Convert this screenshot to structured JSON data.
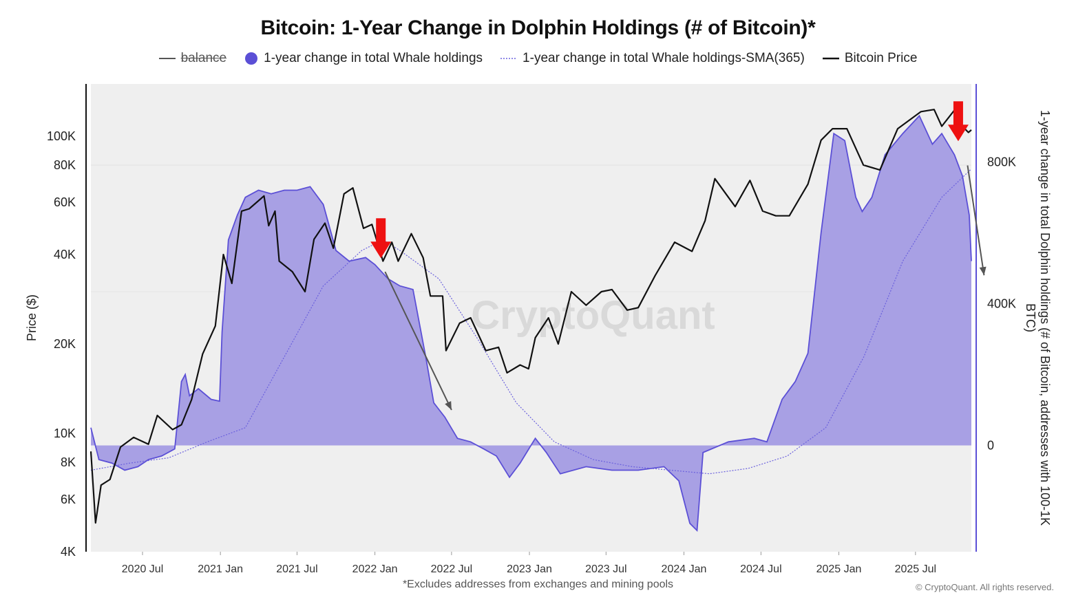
{
  "title": "Bitcoin: 1-Year Change in Dolphin Holdings (# of Bitcoin)*",
  "legend": {
    "balance": "balance",
    "whale_change": "1-year change in total Whale holdings",
    "whale_sma": "1-year change in total Whale holdings-SMA(365)",
    "btc_price": "Bitcoin Price"
  },
  "colors": {
    "area_fill": "#a39be3",
    "area_line": "#5b4fd6",
    "sma_line": "#6a60dd",
    "price_line": "#111111",
    "plot_bg": "#efefef",
    "arrow_red": "#ee1111",
    "arrow_gray": "#555555"
  },
  "watermark": "CryptoQuant",
  "footnote": "*Excludes addresses from exchanges and mining pools",
  "credit": "© CryptoQuant. All rights reserved.",
  "chart_data": {
    "type": "line",
    "x_tick_labels": [
      "2020 Jul",
      "2021 Jan",
      "2021 Jul",
      "2022 Jan",
      "2022 Jul",
      "2023 Jan",
      "2023 Jul",
      "2024 Jan",
      "2024 Jul",
      "2025 Jan",
      "2025 Jul"
    ],
    "left_axis": {
      "label": "Price ($)",
      "scale": "log",
      "range": [
        4000,
        150000
      ],
      "tick_labels": [
        "4K",
        "6K",
        "8K",
        "10K",
        "20K",
        "40K",
        "60K",
        "80K",
        "100K"
      ]
    },
    "right_axis": {
      "label": "1-year change in total Dolphin holdings (# of Bitcoin, addresses with 100-1K BTC)",
      "range": [
        -300000,
        1020000
      ],
      "tick_labels": [
        "0",
        "400K",
        "800K"
      ]
    },
    "x_range": [
      "2020-03-01",
      "2025-11-10"
    ],
    "series": [
      {
        "name": "Bitcoin Price",
        "axis": "left",
        "points": [
          [
            "2020-03-01",
            8700
          ],
          [
            "2020-03-12",
            5000
          ],
          [
            "2020-03-25",
            6700
          ],
          [
            "2020-04-15",
            7000
          ],
          [
            "2020-05-10",
            9000
          ],
          [
            "2020-06-10",
            9700
          ],
          [
            "2020-07-15",
            9200
          ],
          [
            "2020-08-05",
            11500
          ],
          [
            "2020-09-10",
            10300
          ],
          [
            "2020-10-01",
            10700
          ],
          [
            "2020-10-25",
            13000
          ],
          [
            "2020-11-20",
            18500
          ],
          [
            "2020-12-20",
            23000
          ],
          [
            "2021-01-08",
            40000
          ],
          [
            "2021-01-28",
            32000
          ],
          [
            "2021-02-20",
            56000
          ],
          [
            "2021-03-10",
            57000
          ],
          [
            "2021-04-14",
            63000
          ],
          [
            "2021-04-25",
            50000
          ],
          [
            "2021-05-10",
            56000
          ],
          [
            "2021-05-20",
            38000
          ],
          [
            "2021-06-20",
            35000
          ],
          [
            "2021-07-20",
            30000
          ],
          [
            "2021-08-10",
            45000
          ],
          [
            "2021-09-05",
            51000
          ],
          [
            "2021-09-25",
            42000
          ],
          [
            "2021-10-20",
            64000
          ],
          [
            "2021-11-10",
            67000
          ],
          [
            "2021-12-05",
            49000
          ],
          [
            "2021-12-25",
            50500
          ],
          [
            "2022-01-20",
            38000
          ],
          [
            "2022-02-10",
            44000
          ],
          [
            "2022-02-25",
            38000
          ],
          [
            "2022-03-28",
            47000
          ],
          [
            "2022-04-25",
            39000
          ],
          [
            "2022-05-12",
            29000
          ],
          [
            "2022-06-10",
            29000
          ],
          [
            "2022-06-18",
            19000
          ],
          [
            "2022-07-20",
            23500
          ],
          [
            "2022-08-15",
            24500
          ],
          [
            "2022-09-20",
            19000
          ],
          [
            "2022-10-20",
            19500
          ],
          [
            "2022-11-09",
            16000
          ],
          [
            "2022-12-10",
            17000
          ],
          [
            "2022-12-30",
            16500
          ],
          [
            "2023-01-15",
            21000
          ],
          [
            "2023-02-15",
            24500
          ],
          [
            "2023-03-10",
            20000
          ],
          [
            "2023-04-10",
            30000
          ],
          [
            "2023-05-15",
            27000
          ],
          [
            "2023-06-20",
            30000
          ],
          [
            "2023-07-15",
            30500
          ],
          [
            "2023-08-20",
            26000
          ],
          [
            "2023-09-15",
            26500
          ],
          [
            "2023-10-25",
            34000
          ],
          [
            "2023-12-10",
            44000
          ],
          [
            "2024-01-20",
            41000
          ],
          [
            "2024-02-20",
            52000
          ],
          [
            "2024-03-14",
            72000
          ],
          [
            "2024-05-01",
            58000
          ],
          [
            "2024-06-05",
            71000
          ],
          [
            "2024-07-05",
            56000
          ],
          [
            "2024-08-05",
            54000
          ],
          [
            "2024-09-06",
            54000
          ],
          [
            "2024-10-20",
            69000
          ],
          [
            "2024-11-20",
            97000
          ],
          [
            "2024-12-17",
            106000
          ],
          [
            "2025-01-20",
            106000
          ],
          [
            "2025-02-28",
            80000
          ],
          [
            "2025-04-08",
            77000
          ],
          [
            "2025-05-20",
            106000
          ],
          [
            "2025-07-14",
            121000
          ],
          [
            "2025-08-14",
            123000
          ],
          [
            "2025-09-01",
            108000
          ],
          [
            "2025-10-06",
            125000
          ],
          [
            "2025-10-20",
            108000
          ],
          [
            "2025-11-03",
            103000
          ],
          [
            "2025-11-10",
            105000
          ]
        ]
      },
      {
        "name": "1-year change in total Whale holdings",
        "axis": "right",
        "points": [
          [
            "2020-03-01",
            50000
          ],
          [
            "2020-03-20",
            -40000
          ],
          [
            "2020-04-20",
            -50000
          ],
          [
            "2020-05-20",
            -70000
          ],
          [
            "2020-06-20",
            -60000
          ],
          [
            "2020-07-15",
            -40000
          ],
          [
            "2020-08-15",
            -30000
          ],
          [
            "2020-09-15",
            -10000
          ],
          [
            "2020-10-01",
            180000
          ],
          [
            "2020-10-10",
            200000
          ],
          [
            "2020-10-20",
            140000
          ],
          [
            "2020-11-10",
            160000
          ],
          [
            "2020-12-10",
            130000
          ],
          [
            "2020-12-30",
            125000
          ],
          [
            "2021-01-05",
            320000
          ],
          [
            "2021-01-20",
            580000
          ],
          [
            "2021-02-10",
            650000
          ],
          [
            "2021-03-01",
            700000
          ],
          [
            "2021-04-01",
            720000
          ],
          [
            "2021-05-01",
            710000
          ],
          [
            "2021-06-01",
            720000
          ],
          [
            "2021-07-01",
            720000
          ],
          [
            "2021-08-01",
            730000
          ],
          [
            "2021-09-01",
            680000
          ],
          [
            "2021-10-01",
            550000
          ],
          [
            "2021-11-01",
            520000
          ],
          [
            "2021-12-10",
            530000
          ],
          [
            "2022-01-01",
            510000
          ],
          [
            "2022-02-01",
            470000
          ],
          [
            "2022-03-01",
            450000
          ],
          [
            "2022-04-01",
            440000
          ],
          [
            "2022-05-01",
            250000
          ],
          [
            "2022-05-20",
            120000
          ],
          [
            "2022-06-15",
            80000
          ],
          [
            "2022-07-15",
            20000
          ],
          [
            "2022-08-15",
            10000
          ],
          [
            "2022-09-15",
            -10000
          ],
          [
            "2022-10-15",
            -30000
          ],
          [
            "2022-11-15",
            -90000
          ],
          [
            "2022-12-10",
            -50000
          ],
          [
            "2023-01-15",
            20000
          ],
          [
            "2023-02-10",
            -20000
          ],
          [
            "2023-03-15",
            -80000
          ],
          [
            "2023-05-15",
            -60000
          ],
          [
            "2023-07-15",
            -70000
          ],
          [
            "2023-09-15",
            -70000
          ],
          [
            "2023-11-15",
            -60000
          ],
          [
            "2023-12-20",
            -100000
          ],
          [
            "2024-01-15",
            -220000
          ],
          [
            "2024-02-01",
            -240000
          ],
          [
            "2024-02-15",
            -20000
          ],
          [
            "2024-04-15",
            10000
          ],
          [
            "2024-06-15",
            20000
          ],
          [
            "2024-07-15",
            10000
          ],
          [
            "2024-08-20",
            130000
          ],
          [
            "2024-09-20",
            180000
          ],
          [
            "2024-10-20",
            260000
          ],
          [
            "2024-11-20",
            600000
          ],
          [
            "2024-12-20",
            880000
          ],
          [
            "2025-01-15",
            860000
          ],
          [
            "2025-02-10",
            700000
          ],
          [
            "2025-02-25",
            660000
          ],
          [
            "2025-03-20",
            700000
          ],
          [
            "2025-04-20",
            820000
          ],
          [
            "2025-06-01",
            880000
          ],
          [
            "2025-07-10",
            930000
          ],
          [
            "2025-08-10",
            850000
          ],
          [
            "2025-09-01",
            880000
          ],
          [
            "2025-10-01",
            820000
          ],
          [
            "2025-10-20",
            760000
          ],
          [
            "2025-11-05",
            650000
          ],
          [
            "2025-11-10",
            520000
          ]
        ]
      },
      {
        "name": "1-year change in total Whale holdings-SMA(365)",
        "axis": "right",
        "points": [
          [
            "2020-03-01",
            -70000
          ],
          [
            "2020-06-01",
            -50000
          ],
          [
            "2020-09-01",
            -35000
          ],
          [
            "2020-12-01",
            10000
          ],
          [
            "2021-03-01",
            50000
          ],
          [
            "2021-06-01",
            250000
          ],
          [
            "2021-09-01",
            450000
          ],
          [
            "2021-12-01",
            550000
          ],
          [
            "2022-01-20",
            580000
          ],
          [
            "2022-03-01",
            550000
          ],
          [
            "2022-06-01",
            470000
          ],
          [
            "2022-09-01",
            300000
          ],
          [
            "2022-12-01",
            120000
          ],
          [
            "2023-03-01",
            10000
          ],
          [
            "2023-06-01",
            -40000
          ],
          [
            "2023-09-01",
            -60000
          ],
          [
            "2023-12-01",
            -70000
          ],
          [
            "2024-03-01",
            -80000
          ],
          [
            "2024-06-01",
            -65000
          ],
          [
            "2024-09-01",
            -30000
          ],
          [
            "2024-12-01",
            50000
          ],
          [
            "2025-03-01",
            250000
          ],
          [
            "2025-06-01",
            520000
          ],
          [
            "2025-09-01",
            700000
          ],
          [
            "2025-11-10",
            780000
          ]
        ]
      }
    ],
    "annotations": [
      {
        "type": "red-arrow-down",
        "date": "2022-01-15",
        "value_right": 540000
      },
      {
        "type": "red-arrow-down",
        "date": "2025-10-10",
        "value_right": 870000
      },
      {
        "type": "gray-arrow",
        "from": [
          "2022-01-25",
          490000
        ],
        "to": [
          "2022-07-01",
          100000
        ]
      },
      {
        "type": "gray-arrow",
        "from": [
          "2025-11-01",
          790000
        ],
        "to": [
          "2025-12-10",
          480000
        ]
      }
    ],
    "grid": true,
    "legend_position": "top-center"
  }
}
